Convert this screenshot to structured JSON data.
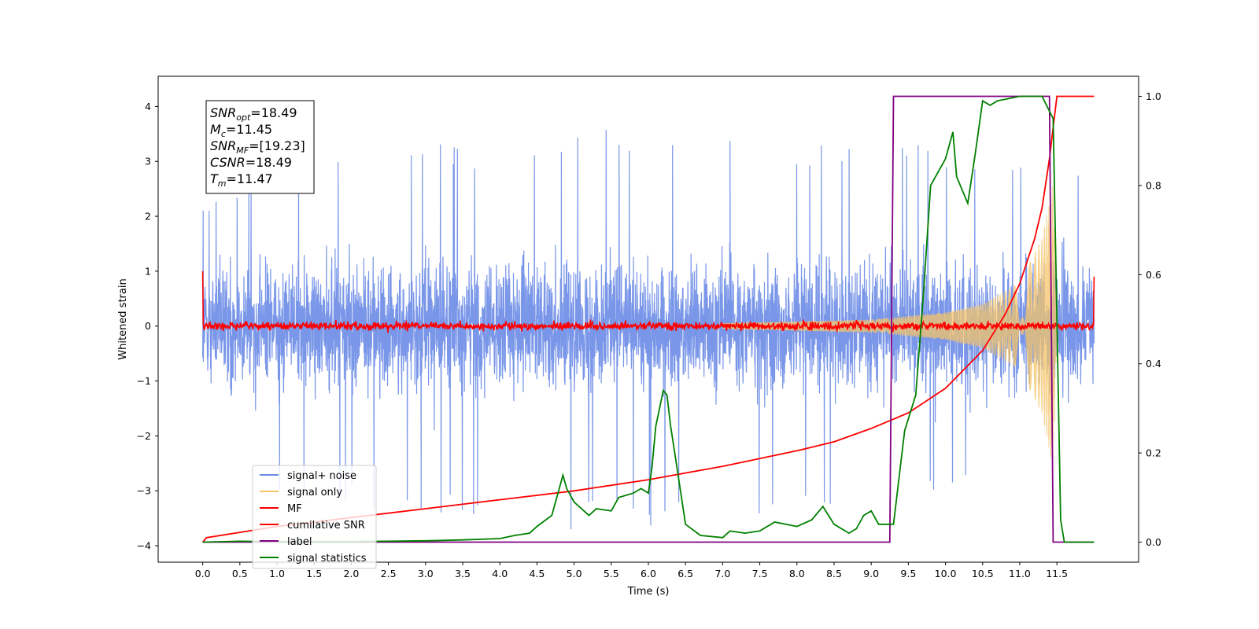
{
  "chart_data": {
    "type": "line",
    "xlabel": "Time (s)",
    "ylabel": "Whitened strain",
    "xlim": [
      -0.6,
      12.6
    ],
    "ylim": [
      -4.3,
      4.55
    ],
    "y2lim": [
      -0.045,
      1.045
    ],
    "x_ticks": [
      0.0,
      0.5,
      1.0,
      1.5,
      2.0,
      2.5,
      3.0,
      3.5,
      4.0,
      4.5,
      5.0,
      5.5,
      6.0,
      6.5,
      7.0,
      7.5,
      8.0,
      8.5,
      9.0,
      9.5,
      10.0,
      10.5,
      11.0,
      11.5
    ],
    "x_tick_labels": [
      "0.0",
      "0.5",
      "1.0",
      "1.5",
      "2.0",
      "2.5",
      "3.0",
      "3.5",
      "4.0",
      "4.5",
      "5.0",
      "5.5",
      "6.0",
      "6.5",
      "7.0",
      "7.5",
      "8.0",
      "8.5",
      "9.0",
      "9.5",
      "10.0",
      "10.5",
      "11.0",
      "11.5"
    ],
    "y_ticks": [
      -4,
      -3,
      -2,
      -1,
      0,
      1,
      2,
      3,
      4
    ],
    "y_tick_labels": [
      "−4",
      "−3",
      "−2",
      "−1",
      "0",
      "1",
      "2",
      "3",
      "4"
    ],
    "y2_ticks": [
      0.0,
      0.2,
      0.4,
      0.6,
      0.8,
      1.0
    ],
    "y2_tick_labels": [
      "0.0",
      "0.2",
      "0.4",
      "0.6",
      "0.8",
      "1.0"
    ],
    "legend_placement": "lower-left",
    "grid": false,
    "annotation": [
      {
        "base": "SNR",
        "sub": "opt",
        "rest": "=18.49"
      },
      {
        "base": "M",
        "sub": "c",
        "rest": "=11.45"
      },
      {
        "base": "SNR",
        "sub": "MF",
        "rest": "=[19.23]"
      },
      {
        "base": "CSNR",
        "sub": "",
        "rest": "=18.49"
      },
      {
        "base": "T",
        "sub": "m",
        "rest": "=11.47"
      }
    ],
    "series": [
      {
        "name": "signal+ noise",
        "axis": "left",
        "color": "#6a8be6",
        "kind": "noise",
        "x_range": [
          0.0,
          12.0
        ],
        "envelope": [
          {
            "x": 0.0,
            "lo": -3.2,
            "hi": 2.3
          },
          {
            "x": 2.0,
            "lo": -3.3,
            "hi": 3.4
          },
          {
            "x": 4.0,
            "lo": -3.7,
            "hi": 3.3
          },
          {
            "x": 6.0,
            "lo": -3.7,
            "hi": 3.8
          },
          {
            "x": 8.0,
            "lo": -3.4,
            "hi": 3.3
          },
          {
            "x": 10.0,
            "lo": -3.1,
            "hi": 3.4
          },
          {
            "x": 12.0,
            "lo": -2.5,
            "hi": 3.0
          }
        ]
      },
      {
        "name": "signal only",
        "axis": "left",
        "color": "#f5c46a",
        "kind": "chirp",
        "amplitude_points": [
          {
            "x": 7.0,
            "y": 0.05
          },
          {
            "x": 9.0,
            "y": 0.12
          },
          {
            "x": 10.0,
            "y": 0.25
          },
          {
            "x": 10.5,
            "y": 0.4
          },
          {
            "x": 11.0,
            "y": 0.8
          },
          {
            "x": 11.3,
            "y": 1.6
          },
          {
            "x": 11.45,
            "y": 2.6
          },
          {
            "x": 11.5,
            "y": 0.0
          }
        ]
      },
      {
        "name": "MF",
        "axis": "left",
        "color": "#ff0000",
        "kind": "mf",
        "x_range": [
          0.0,
          12.0
        ],
        "start_value": 1.0,
        "end_value": 0.9,
        "noise_amplitude": 0.05
      },
      {
        "name": "cumilative SNR",
        "axis": "right",
        "color": "#ff0000",
        "points": [
          [
            0.0,
            0.0
          ],
          [
            0.05,
            0.01
          ],
          [
            1.0,
            0.035
          ],
          [
            2.0,
            0.055
          ],
          [
            3.0,
            0.075
          ],
          [
            4.0,
            0.095
          ],
          [
            5.0,
            0.115
          ],
          [
            6.0,
            0.14
          ],
          [
            7.0,
            0.17
          ],
          [
            8.0,
            0.205
          ],
          [
            8.5,
            0.225
          ],
          [
            9.0,
            0.255
          ],
          [
            9.5,
            0.29
          ],
          [
            10.0,
            0.345
          ],
          [
            10.5,
            0.43
          ],
          [
            10.8,
            0.51
          ],
          [
            11.0,
            0.58
          ],
          [
            11.2,
            0.68
          ],
          [
            11.3,
            0.75
          ],
          [
            11.4,
            0.86
          ],
          [
            11.45,
            0.93
          ],
          [
            11.5,
            1.0
          ],
          [
            12.0,
            1.0
          ]
        ]
      },
      {
        "name": "label",
        "axis": "right",
        "color": "#800080",
        "points": [
          [
            0.0,
            0.0
          ],
          [
            9.25,
            0.0
          ],
          [
            9.3,
            1.0
          ],
          [
            11.4,
            1.0
          ],
          [
            11.45,
            0.0
          ],
          [
            12.0,
            0.0
          ]
        ]
      },
      {
        "name": "signal statistics",
        "axis": "right",
        "color": "#008000",
        "points": [
          [
            0.0,
            0.0
          ],
          [
            0.5,
            0.002
          ],
          [
            1.0,
            0.001
          ],
          [
            2.0,
            0.001
          ],
          [
            3.0,
            0.003
          ],
          [
            3.5,
            0.005
          ],
          [
            4.0,
            0.008
          ],
          [
            4.2,
            0.015
          ],
          [
            4.4,
            0.02
          ],
          [
            4.5,
            0.035
          ],
          [
            4.7,
            0.06
          ],
          [
            4.85,
            0.15
          ],
          [
            4.9,
            0.12
          ],
          [
            5.0,
            0.09
          ],
          [
            5.2,
            0.06
          ],
          [
            5.3,
            0.075
          ],
          [
            5.5,
            0.07
          ],
          [
            5.6,
            0.1
          ],
          [
            5.8,
            0.11
          ],
          [
            5.9,
            0.12
          ],
          [
            6.0,
            0.11
          ],
          [
            6.05,
            0.17
          ],
          [
            6.1,
            0.26
          ],
          [
            6.2,
            0.34
          ],
          [
            6.25,
            0.33
          ],
          [
            6.3,
            0.26
          ],
          [
            6.4,
            0.15
          ],
          [
            6.5,
            0.04
          ],
          [
            6.7,
            0.015
          ],
          [
            7.0,
            0.01
          ],
          [
            7.1,
            0.025
          ],
          [
            7.3,
            0.02
          ],
          [
            7.5,
            0.025
          ],
          [
            7.7,
            0.045
          ],
          [
            8.0,
            0.035
          ],
          [
            8.2,
            0.05
          ],
          [
            8.35,
            0.08
          ],
          [
            8.5,
            0.04
          ],
          [
            8.7,
            0.02
          ],
          [
            8.8,
            0.03
          ],
          [
            8.9,
            0.06
          ],
          [
            9.0,
            0.07
          ],
          [
            9.1,
            0.04
          ],
          [
            9.3,
            0.04
          ],
          [
            9.45,
            0.25
          ],
          [
            9.6,
            0.33
          ],
          [
            9.7,
            0.55
          ],
          [
            9.8,
            0.8
          ],
          [
            10.0,
            0.86
          ],
          [
            10.1,
            0.92
          ],
          [
            10.15,
            0.82
          ],
          [
            10.3,
            0.76
          ],
          [
            10.4,
            0.87
          ],
          [
            10.5,
            0.99
          ],
          [
            10.6,
            0.98
          ],
          [
            10.7,
            0.99
          ],
          [
            11.0,
            1.0
          ],
          [
            11.3,
            1.0
          ],
          [
            11.45,
            0.95
          ],
          [
            11.5,
            0.5
          ],
          [
            11.55,
            0.05
          ],
          [
            11.6,
            0.0
          ],
          [
            12.0,
            0.0
          ]
        ]
      }
    ]
  }
}
